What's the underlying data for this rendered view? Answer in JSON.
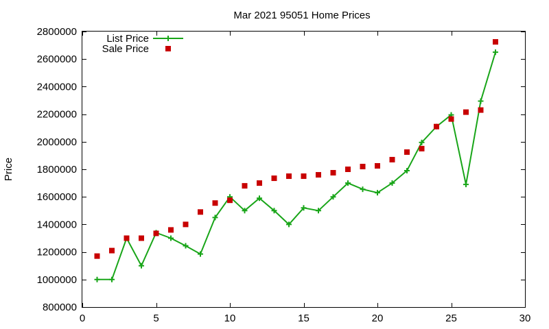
{
  "chart_data": {
    "type": "line",
    "title": "Mar 2021 95051 Home Prices",
    "xlabel": "",
    "ylabel": "Price",
    "xlim": [
      0,
      30
    ],
    "ylim": [
      800000,
      2800000
    ],
    "xticks": [
      0,
      5,
      10,
      15,
      20,
      25,
      30
    ],
    "yticks": [
      800000,
      1000000,
      1200000,
      1400000,
      1600000,
      1800000,
      2000000,
      2200000,
      2400000,
      2600000,
      2800000
    ],
    "grid": false,
    "legend_position": "top-left",
    "series": [
      {
        "name": "List Price",
        "style": "line-with-plus-markers",
        "color": "#18a518",
        "x": [
          1,
          2,
          3,
          4,
          5,
          6,
          7,
          8,
          9,
          10,
          11,
          12,
          13,
          14,
          15,
          16,
          17,
          18,
          19,
          20,
          21,
          22,
          23,
          24,
          25,
          26,
          27,
          28
        ],
        "values": [
          1000000,
          1000000,
          1300000,
          1100000,
          1340000,
          1300000,
          1245000,
          1185000,
          1450000,
          1600000,
          1500000,
          1590000,
          1500000,
          1400000,
          1520000,
          1500000,
          1600000,
          1700000,
          1655000,
          1630000,
          1700000,
          1790000,
          1995000,
          2110000,
          2195000,
          1690000,
          2295000,
          2650000
        ]
      },
      {
        "name": "Sale Price",
        "style": "square-markers",
        "color": "#c80000",
        "x": [
          1,
          2,
          3,
          4,
          5,
          6,
          7,
          8,
          9,
          10,
          11,
          12,
          13,
          14,
          15,
          16,
          17,
          18,
          19,
          20,
          21,
          22,
          23,
          24,
          25,
          26,
          27,
          28
        ],
        "values": [
          1170000,
          1210000,
          1300000,
          1300000,
          1335000,
          1360000,
          1400000,
          1490000,
          1555000,
          1575000,
          1680000,
          1700000,
          1735000,
          1750000,
          1750000,
          1760000,
          1775000,
          1800000,
          1820000,
          1825000,
          1870000,
          1925000,
          1950000,
          2110000,
          2165000,
          2215000,
          2230000,
          2725000
        ]
      }
    ]
  }
}
